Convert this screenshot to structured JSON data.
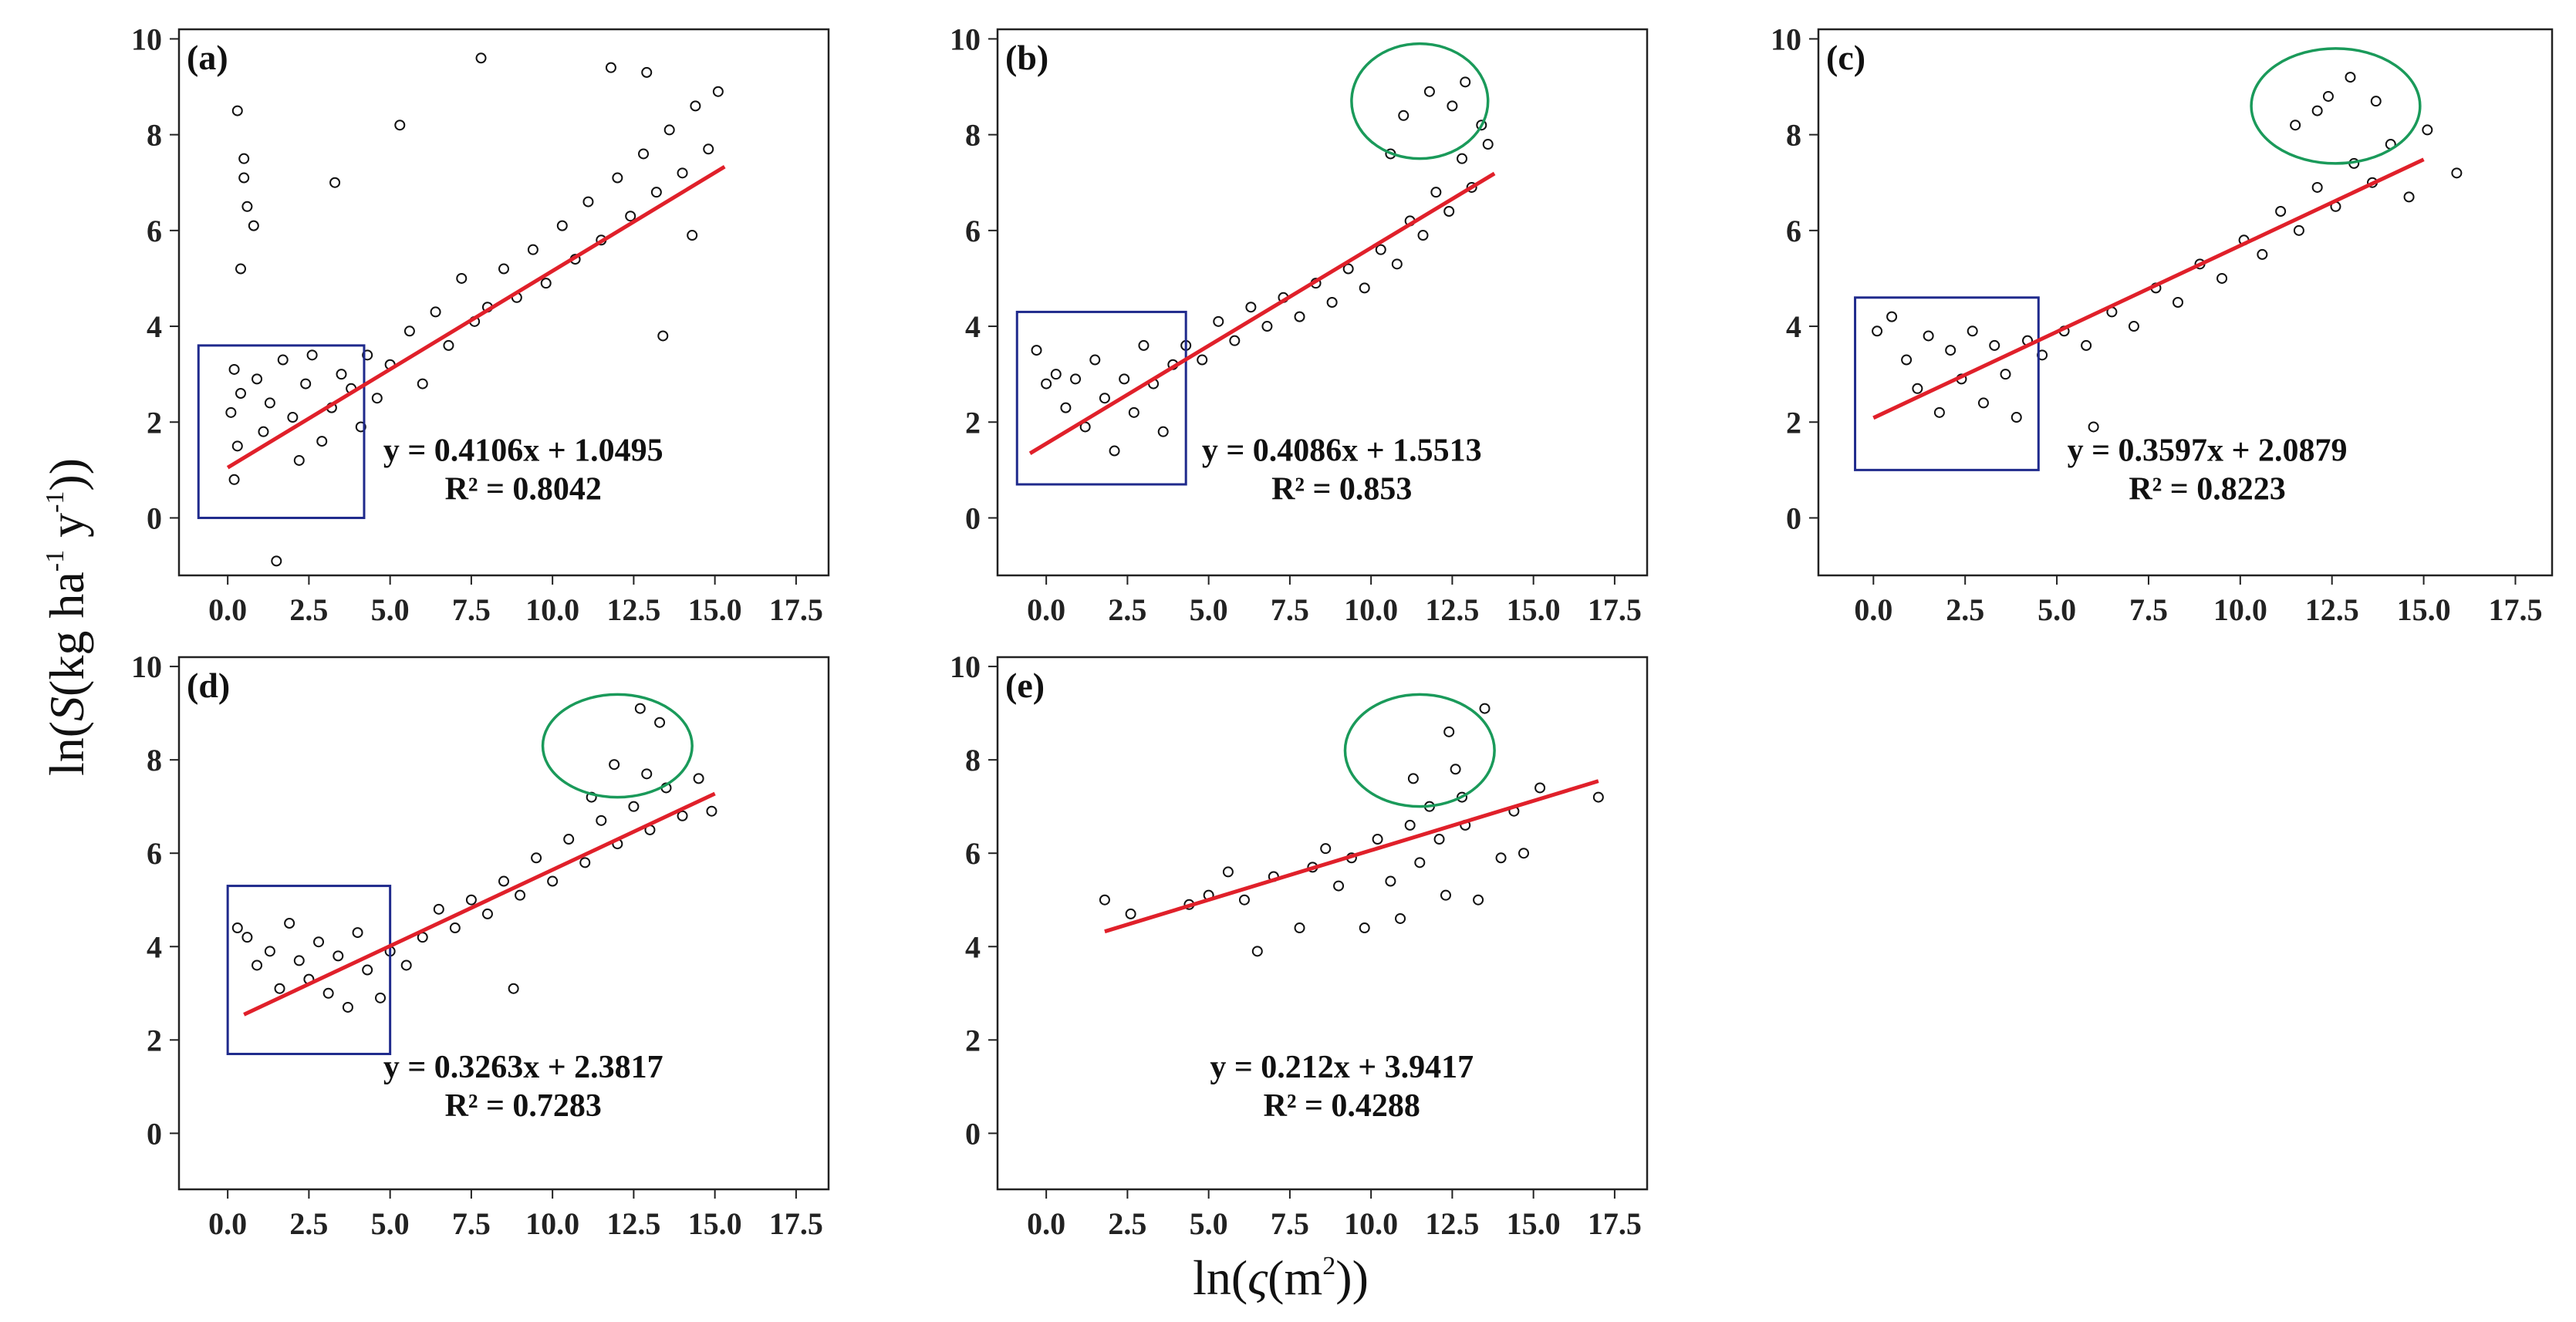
{
  "x_axis_title": {
    "prefix": "ln(",
    "symbol": "ς",
    "unit": "(m",
    "sup": "2",
    "suffix": "))"
  },
  "y_axis_title": {
    "prefix": "ln(",
    "symbol": "S",
    "unit": "(kg ha",
    "sup1": "-1",
    "mid": "  y",
    "sup2": "-1",
    "suffix": "))"
  },
  "colors": {
    "fit_line": "#e0202a",
    "box": "#1f2a8c",
    "ellipse": "#1a9a5a",
    "marker": "#111111",
    "frame": "#222222"
  },
  "chart_data": [
    {
      "panel": "(a)",
      "type": "scatter",
      "equation": "y = 0.4106x + 1.0495",
      "r_squared": "R² = 0.8042",
      "slope": 0.4106,
      "intercept": 1.0495,
      "fit_x_range": [
        0,
        15.3
      ],
      "xlim": [
        -1.5,
        18.5
      ],
      "ylim": [
        -1.2,
        10.2
      ],
      "x_ticks": [
        0,
        2.5,
        5,
        7.5,
        10,
        12.5,
        15,
        17.5
      ],
      "x_tick_labels": [
        "0.0",
        "2.5",
        "5.0",
        "7.5",
        "10.0",
        "12.5",
        "15.0",
        "17.5"
      ],
      "y_ticks": [
        0,
        2,
        4,
        6,
        8,
        10
      ],
      "y_tick_labels": [
        "0",
        "2",
        "4",
        "6",
        "8",
        "10"
      ],
      "box": {
        "x": [
          -0.9,
          4.2
        ],
        "y": [
          0,
          3.6
        ]
      },
      "ellipse": null,
      "points": [
        [
          0.1,
          2.2
        ],
        [
          0.2,
          3.1
        ],
        [
          0.3,
          1.5
        ],
        [
          0.2,
          0.8
        ],
        [
          0.4,
          2.6
        ],
        [
          0.3,
          8.5
        ],
        [
          0.5,
          7.5
        ],
        [
          0.5,
          7.1
        ],
        [
          0.6,
          6.5
        ],
        [
          0.8,
          6.1
        ],
        [
          0.4,
          5.2
        ],
        [
          0.9,
          2.9
        ],
        [
          1.1,
          1.8
        ],
        [
          1.3,
          2.4
        ],
        [
          1.5,
          -0.9
        ],
        [
          1.7,
          3.3
        ],
        [
          2.0,
          2.1
        ],
        [
          2.2,
          1.2
        ],
        [
          2.4,
          2.8
        ],
        [
          2.6,
          3.4
        ],
        [
          2.9,
          1.6
        ],
        [
          3.2,
          2.3
        ],
        [
          3.5,
          3.0
        ],
        [
          3.3,
          7.0
        ],
        [
          3.8,
          2.7
        ],
        [
          4.1,
          1.9
        ],
        [
          4.3,
          3.4
        ],
        [
          4.6,
          2.5
        ],
        [
          5.0,
          3.2
        ],
        [
          5.3,
          8.2
        ],
        [
          5.6,
          3.9
        ],
        [
          6.0,
          2.8
        ],
        [
          6.4,
          4.3
        ],
        [
          6.8,
          3.6
        ],
        [
          7.2,
          5.0
        ],
        [
          7.6,
          4.1
        ],
        [
          8.0,
          4.4
        ],
        [
          7.8,
          9.6
        ],
        [
          8.5,
          5.2
        ],
        [
          8.9,
          4.6
        ],
        [
          9.4,
          5.6
        ],
        [
          9.8,
          4.9
        ],
        [
          10.3,
          6.1
        ],
        [
          10.7,
          5.4
        ],
        [
          11.1,
          6.6
        ],
        [
          11.5,
          5.8
        ],
        [
          12.0,
          7.1
        ],
        [
          12.4,
          6.3
        ],
        [
          12.8,
          7.6
        ],
        [
          13.2,
          6.8
        ],
        [
          13.6,
          8.1
        ],
        [
          14.0,
          7.2
        ],
        [
          14.4,
          8.6
        ],
        [
          14.8,
          7.7
        ],
        [
          15.1,
          8.9
        ],
        [
          13.4,
          3.8
        ],
        [
          14.3,
          5.9
        ],
        [
          11.8,
          9.4
        ],
        [
          12.9,
          9.3
        ]
      ]
    },
    {
      "panel": "(b)",
      "type": "scatter",
      "equation": "y = 0.4086x + 1.5513",
      "r_squared": "R² = 0.853",
      "slope": 0.4086,
      "intercept": 1.5513,
      "fit_x_range": [
        -0.5,
        13.8
      ],
      "xlim": [
        -1.5,
        18.5
      ],
      "ylim": [
        -1.2,
        10.2
      ],
      "x_ticks": [
        0,
        2.5,
        5,
        7.5,
        10,
        12.5,
        15,
        17.5
      ],
      "x_tick_labels": [
        "0.0",
        "2.5",
        "5.0",
        "7.5",
        "10.0",
        "12.5",
        "15.0",
        "17.5"
      ],
      "y_ticks": [
        0,
        2,
        4,
        6,
        8,
        10
      ],
      "y_tick_labels": [
        "0",
        "2",
        "4",
        "6",
        "8",
        "10"
      ],
      "box": {
        "x": [
          -0.9,
          4.3
        ],
        "y": [
          0.7,
          4.3
        ]
      },
      "ellipse": {
        "cx": 11.5,
        "cy": 8.7,
        "rx": 2.1,
        "ry": 1.2
      },
      "points": [
        [
          -0.3,
          3.5
        ],
        [
          0.0,
          2.8
        ],
        [
          0.3,
          3.0
        ],
        [
          0.6,
          2.3
        ],
        [
          0.9,
          2.9
        ],
        [
          1.2,
          1.9
        ],
        [
          1.5,
          3.3
        ],
        [
          1.8,
          2.5
        ],
        [
          2.1,
          1.4
        ],
        [
          2.4,
          2.9
        ],
        [
          2.7,
          2.2
        ],
        [
          3.0,
          3.6
        ],
        [
          3.3,
          2.8
        ],
        [
          3.6,
          1.8
        ],
        [
          3.9,
          3.2
        ],
        [
          4.3,
          3.6
        ],
        [
          4.8,
          3.3
        ],
        [
          5.3,
          4.1
        ],
        [
          5.8,
          3.7
        ],
        [
          6.3,
          4.4
        ],
        [
          6.8,
          4.0
        ],
        [
          7.3,
          4.6
        ],
        [
          7.8,
          4.2
        ],
        [
          8.3,
          4.9
        ],
        [
          8.8,
          4.5
        ],
        [
          9.3,
          5.2
        ],
        [
          9.8,
          4.8
        ],
        [
          10.3,
          5.6
        ],
        [
          10.8,
          5.3
        ],
        [
          11.2,
          6.2
        ],
        [
          11.6,
          5.9
        ],
        [
          12.0,
          6.8
        ],
        [
          12.4,
          6.4
        ],
        [
          12.8,
          7.5
        ],
        [
          13.1,
          6.9
        ],
        [
          13.4,
          8.2
        ],
        [
          11.0,
          8.4
        ],
        [
          11.8,
          8.9
        ],
        [
          12.5,
          8.6
        ],
        [
          12.9,
          9.1
        ],
        [
          10.6,
          7.6
        ],
        [
          13.6,
          7.8
        ]
      ]
    },
    {
      "panel": "(c)",
      "type": "scatter",
      "equation": "y = 0.3597x + 2.0879",
      "r_squared": "R² = 0.8223",
      "slope": 0.3597,
      "intercept": 2.0879,
      "fit_x_range": [
        0,
        15.0
      ],
      "xlim": [
        -1.5,
        18.5
      ],
      "ylim": [
        -1.2,
        10.2
      ],
      "x_ticks": [
        0,
        2.5,
        5,
        7.5,
        10,
        12.5,
        15,
        17.5
      ],
      "x_tick_labels": [
        "0.0",
        "2.5",
        "5.0",
        "7.5",
        "10.0",
        "12.5",
        "15.0",
        "17.5"
      ],
      "y_ticks": [
        0,
        2,
        4,
        6,
        8,
        10
      ],
      "y_tick_labels": [
        "0",
        "2",
        "4",
        "6",
        "8",
        "10"
      ],
      "box": {
        "x": [
          -0.5,
          4.5
        ],
        "y": [
          1.0,
          4.6
        ]
      },
      "ellipse": {
        "cx": 12.6,
        "cy": 8.6,
        "rx": 2.3,
        "ry": 1.2
      },
      "points": [
        [
          0.1,
          3.9
        ],
        [
          0.5,
          4.2
        ],
        [
          0.9,
          3.3
        ],
        [
          1.2,
          2.7
        ],
        [
          1.5,
          3.8
        ],
        [
          1.8,
          2.2
        ],
        [
          2.1,
          3.5
        ],
        [
          2.4,
          2.9
        ],
        [
          2.7,
          3.9
        ],
        [
          3.0,
          2.4
        ],
        [
          3.3,
          3.6
        ],
        [
          3.6,
          3.0
        ],
        [
          3.9,
          2.1
        ],
        [
          4.2,
          3.7
        ],
        [
          4.6,
          3.4
        ],
        [
          5.2,
          3.9
        ],
        [
          5.8,
          3.6
        ],
        [
          6.0,
          1.9
        ],
        [
          6.5,
          4.3
        ],
        [
          7.1,
          4.0
        ],
        [
          7.7,
          4.8
        ],
        [
          8.3,
          4.5
        ],
        [
          8.9,
          5.3
        ],
        [
          9.5,
          5.0
        ],
        [
          10.1,
          5.8
        ],
        [
          10.6,
          5.5
        ],
        [
          11.1,
          6.4
        ],
        [
          11.6,
          6.0
        ],
        [
          12.1,
          6.9
        ],
        [
          12.6,
          6.5
        ],
        [
          13.1,
          7.4
        ],
        [
          13.6,
          7.0
        ],
        [
          14.1,
          7.8
        ],
        [
          14.6,
          6.7
        ],
        [
          15.1,
          8.1
        ],
        [
          15.9,
          7.2
        ],
        [
          11.5,
          8.2
        ],
        [
          12.4,
          8.8
        ],
        [
          13.0,
          9.2
        ],
        [
          13.7,
          8.7
        ],
        [
          12.1,
          8.5
        ]
      ]
    },
    {
      "panel": "(d)",
      "type": "scatter",
      "equation": "y = 0.3263x + 2.3817",
      "r_squared": "R² = 0.7283",
      "slope": 0.3263,
      "intercept": 2.3817,
      "fit_x_range": [
        0.5,
        15.0
      ],
      "xlim": [
        -1.5,
        18.5
      ],
      "ylim": [
        -1.2,
        10.2
      ],
      "x_ticks": [
        0,
        2.5,
        5,
        7.5,
        10,
        12.5,
        15,
        17.5
      ],
      "x_tick_labels": [
        "0.0",
        "2.5",
        "5.0",
        "7.5",
        "10.0",
        "12.5",
        "15.0",
        "17.5"
      ],
      "y_ticks": [
        0,
        2,
        4,
        6,
        8,
        10
      ],
      "y_tick_labels": [
        "0",
        "2",
        "4",
        "6",
        "8",
        "10"
      ],
      "box": {
        "x": [
          0.0,
          5.0
        ],
        "y": [
          1.7,
          5.3
        ]
      },
      "ellipse": {
        "cx": 12.0,
        "cy": 8.3,
        "rx": 2.3,
        "ry": 1.1
      },
      "points": [
        [
          0.3,
          4.4
        ],
        [
          0.6,
          4.2
        ],
        [
          0.9,
          3.6
        ],
        [
          1.3,
          3.9
        ],
        [
          1.6,
          3.1
        ],
        [
          1.9,
          4.5
        ],
        [
          2.2,
          3.7
        ],
        [
          2.5,
          3.3
        ],
        [
          2.8,
          4.1
        ],
        [
          3.1,
          3.0
        ],
        [
          3.4,
          3.8
        ],
        [
          3.7,
          2.7
        ],
        [
          4.0,
          4.3
        ],
        [
          4.3,
          3.5
        ],
        [
          4.7,
          2.9
        ],
        [
          5.0,
          3.9
        ],
        [
          5.5,
          3.6
        ],
        [
          6.0,
          4.2
        ],
        [
          6.5,
          4.8
        ],
        [
          7.0,
          4.4
        ],
        [
          7.5,
          5.0
        ],
        [
          8.0,
          4.7
        ],
        [
          8.5,
          5.4
        ],
        [
          8.8,
          3.1
        ],
        [
          9.0,
          5.1
        ],
        [
          9.5,
          5.9
        ],
        [
          10.0,
          5.4
        ],
        [
          10.5,
          6.3
        ],
        [
          11.0,
          5.8
        ],
        [
          11.5,
          6.7
        ],
        [
          12.0,
          6.2
        ],
        [
          12.5,
          7.0
        ],
        [
          13.0,
          6.5
        ],
        [
          13.5,
          7.4
        ],
        [
          14.0,
          6.8
        ],
        [
          14.5,
          7.6
        ],
        [
          14.9,
          6.9
        ],
        [
          12.7,
          9.1
        ],
        [
          13.3,
          8.8
        ],
        [
          11.9,
          7.9
        ],
        [
          12.9,
          7.7
        ],
        [
          11.2,
          7.2
        ]
      ]
    },
    {
      "panel": "(e)",
      "type": "scatter",
      "equation": "y = 0.212x + 3.9417",
      "r_squared": "R² = 0.4288",
      "slope": 0.212,
      "intercept": 3.9417,
      "fit_x_range": [
        1.8,
        17.0
      ],
      "xlim": [
        -1.5,
        18.5
      ],
      "ylim": [
        -1.2,
        10.2
      ],
      "x_ticks": [
        0,
        2.5,
        5,
        7.5,
        10,
        12.5,
        15,
        17.5
      ],
      "x_tick_labels": [
        "0.0",
        "2.5",
        "5.0",
        "7.5",
        "10.0",
        "12.5",
        "15.0",
        "17.5"
      ],
      "y_ticks": [
        0,
        2,
        4,
        6,
        8,
        10
      ],
      "y_tick_labels": [
        "0",
        "2",
        "4",
        "6",
        "8",
        "10"
      ],
      "box": null,
      "ellipse": {
        "cx": 11.5,
        "cy": 8.2,
        "rx": 2.3,
        "ry": 1.2
      },
      "points": [
        [
          1.8,
          5.0
        ],
        [
          2.6,
          4.7
        ],
        [
          4.4,
          4.9
        ],
        [
          5.0,
          5.1
        ],
        [
          5.6,
          5.6
        ],
        [
          6.1,
          5.0
        ],
        [
          6.5,
          3.9
        ],
        [
          7.0,
          5.5
        ],
        [
          7.8,
          4.4
        ],
        [
          8.2,
          5.7
        ],
        [
          8.6,
          6.1
        ],
        [
          9.0,
          5.3
        ],
        [
          9.4,
          5.9
        ],
        [
          9.8,
          4.4
        ],
        [
          10.2,
          6.3
        ],
        [
          10.6,
          5.4
        ],
        [
          10.9,
          4.6
        ],
        [
          11.2,
          6.6
        ],
        [
          11.5,
          5.8
        ],
        [
          11.8,
          7.0
        ],
        [
          12.1,
          6.3
        ],
        [
          12.3,
          5.1
        ],
        [
          12.6,
          7.8
        ],
        [
          12.9,
          6.6
        ],
        [
          13.3,
          5.0
        ],
        [
          13.5,
          9.1
        ],
        [
          14.0,
          5.9
        ],
        [
          14.4,
          6.9
        ],
        [
          14.7,
          6.0
        ],
        [
          15.2,
          7.4
        ],
        [
          17.0,
          7.2
        ],
        [
          12.4,
          8.6
        ],
        [
          11.3,
          7.6
        ],
        [
          12.8,
          7.2
        ]
      ]
    }
  ]
}
